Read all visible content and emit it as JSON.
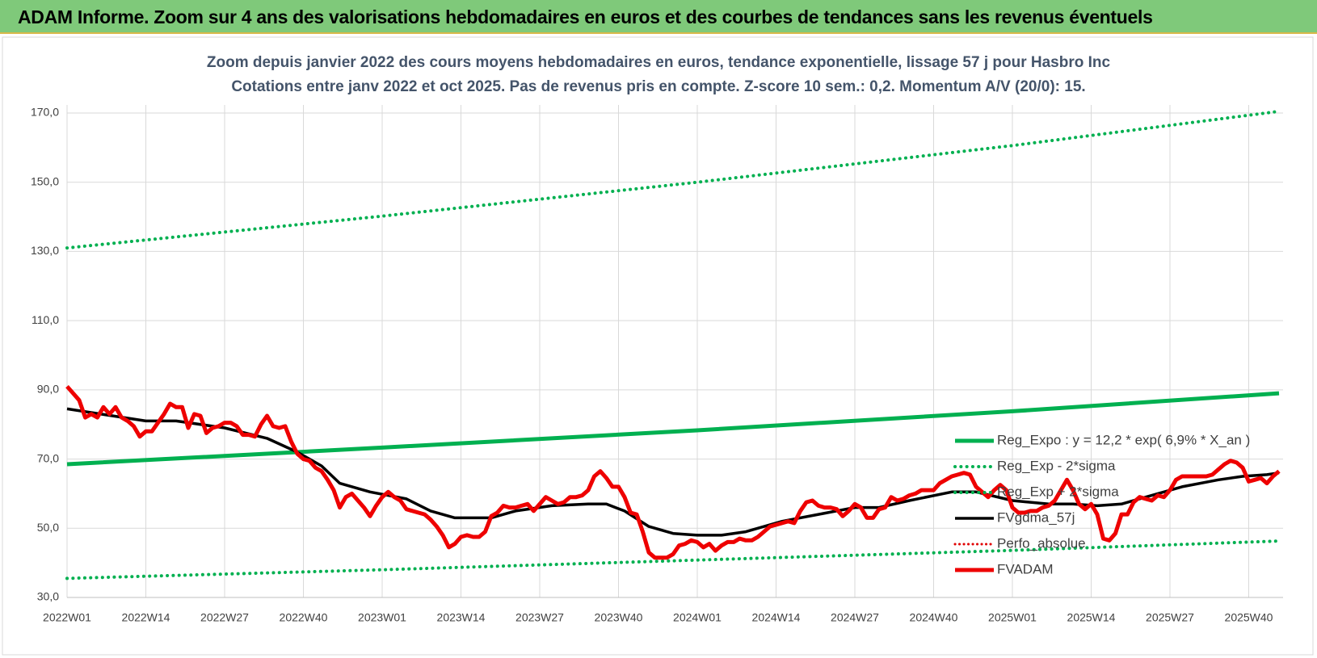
{
  "header": {
    "title": "ADAM Informe. Zoom sur 4 ans des valorisations hebdomadaires en euros et des courbes de tendances sans les revenus éventuels"
  },
  "chart_data": {
    "type": "line",
    "title": "Zoom depuis janvier 2022 des cours moyens hebdomadaires en euros, tendance exponentielle, lissage 57 j pour Hasbro Inc",
    "subtitle": "Cotations entre janv 2022 et oct 2025. Pas de revenus pris en compte. Z-score 10 sem.: 0,2. Momentum A/V (20/0): 15.",
    "categories": [
      "2022W01",
      null,
      null,
      null,
      null,
      null,
      null,
      null,
      null,
      null,
      null,
      null,
      null,
      "2022W14",
      null,
      null,
      null,
      null,
      null,
      null,
      null,
      null,
      null,
      null,
      null,
      null,
      "2022W27",
      null,
      null,
      null,
      null,
      null,
      null,
      null,
      null,
      null,
      null,
      null,
      null,
      "2022W40",
      null,
      null,
      null,
      null,
      null,
      null,
      null,
      null,
      null,
      null,
      null,
      null,
      "2023W01",
      null,
      null,
      null,
      null,
      null,
      null,
      null,
      null,
      null,
      null,
      null,
      null,
      "2023W14",
      null,
      null,
      null,
      null,
      null,
      null,
      null,
      null,
      null,
      null,
      null,
      null,
      "2023W27",
      null,
      null,
      null,
      null,
      null,
      null,
      null,
      null,
      null,
      null,
      null,
      null,
      "2023W40",
      null,
      null,
      null,
      null,
      null,
      null,
      null,
      null,
      null,
      null,
      null,
      null,
      "2024W01",
      null,
      null,
      null,
      null,
      null,
      null,
      null,
      null,
      null,
      null,
      null,
      null,
      "2024W14",
      null,
      null,
      null,
      null,
      null,
      null,
      null,
      null,
      null,
      null,
      null,
      null,
      "2024W27",
      null,
      null,
      null,
      null,
      null,
      null,
      null,
      null,
      null,
      null,
      null,
      null,
      "2024W40",
      null,
      null,
      null,
      null,
      null,
      null,
      null,
      null,
      null,
      null,
      null,
      null,
      "2025W01",
      null,
      null,
      null,
      null,
      null,
      null,
      null,
      null,
      null,
      null,
      null,
      null,
      "2025W14",
      null,
      null,
      null,
      null,
      null,
      null,
      null,
      null,
      null,
      null,
      null,
      null,
      "2025W27",
      null,
      null,
      null,
      null,
      null,
      null,
      null,
      null,
      null,
      null,
      null,
      null,
      "2025W40",
      null,
      null,
      null,
      null,
      null
    ],
    "ylim": [
      30,
      170
    ],
    "yticks": [
      {
        "value": 30,
        "label": "30,0"
      },
      {
        "value": 50,
        "label": "50,0"
      },
      {
        "value": 70,
        "label": "70,0"
      },
      {
        "value": 90,
        "label": "90,0"
      },
      {
        "value": 110,
        "label": "110,0"
      },
      {
        "value": 130,
        "label": "130,0"
      },
      {
        "value": 150,
        "label": "150,0"
      },
      {
        "value": 170,
        "label": "170,0"
      }
    ],
    "grid": true,
    "legend": "right",
    "series": [
      {
        "name": "Reg_Expo : y = 12,2 * exp( 6,9% * X_an )",
        "color": "#00b050",
        "style": "solid",
        "width": 5,
        "x": [
          0,
          52,
          104,
          156,
          200
        ],
        "values": [
          68.5,
          73.3,
          78.3,
          83.8,
          89
        ]
      },
      {
        "name": "Reg_Exp - 2*sigma",
        "color": "#00b050",
        "style": "dotted",
        "width": 4,
        "x": [
          0,
          52,
          104,
          156,
          200
        ],
        "values": [
          35.5,
          38,
          40.8,
          43.6,
          46.3
        ]
      },
      {
        "name": "Reg_Exp + 2*sigma",
        "color": "#00b050",
        "style": "dotted",
        "width": 4,
        "x": [
          0,
          52,
          104,
          156,
          200
        ],
        "values": [
          131,
          140.2,
          150,
          160.6,
          170.5
        ]
      },
      {
        "name": "FVgdma_57j",
        "color": "#000000",
        "style": "solid",
        "width": 3.5,
        "x": [
          0,
          13,
          18,
          26,
          33,
          38,
          42,
          45,
          50,
          56,
          60,
          64,
          70,
          74,
          80,
          86,
          89,
          92,
          96,
          100,
          104,
          108,
          112,
          118,
          124,
          130,
          134,
          139,
          146,
          150,
          156,
          162,
          166,
          170,
          174,
          178,
          184,
          190,
          194,
          198,
          200
        ],
        "values": [
          84.5,
          81,
          81,
          79,
          76,
          72,
          68,
          63,
          60.5,
          58.5,
          55,
          53,
          53,
          55,
          56.5,
          57,
          57,
          55,
          50.5,
          48.5,
          48,
          48,
          49,
          52,
          54,
          56,
          56,
          58,
          60.5,
          60.5,
          58,
          57,
          57,
          56.5,
          57,
          59,
          62,
          64,
          65,
          65.5,
          66
        ]
      },
      {
        "name": "Perfo_absolue",
        "color": "#e00000",
        "style": "dotted",
        "width": 3
      },
      {
        "name": "FVADAM",
        "color": "#ee0000",
        "style": "solid",
        "width": 5,
        "values": [
          91,
          89,
          87,
          82,
          83,
          82,
          85,
          83,
          85,
          82,
          81,
          79.5,
          76.5,
          78,
          78,
          80.5,
          83,
          86,
          85,
          85,
          79,
          83,
          82.5,
          77.5,
          79,
          79.5,
          80.5,
          80.5,
          79.5,
          77,
          77,
          76.5,
          80,
          82.5,
          79.5,
          79,
          79.5,
          75,
          71.5,
          70,
          69.5,
          67.5,
          66.5,
          64,
          61,
          56,
          59,
          60,
          58,
          56,
          53.5,
          56.5,
          59,
          60.5,
          59,
          58,
          55.5,
          55,
          54.5,
          54,
          52.5,
          50.5,
          48,
          44.5,
          45.5,
          47.5,
          48,
          47.5,
          47.5,
          49,
          53.5,
          54.5,
          56.5,
          56,
          56,
          56.5,
          57,
          55,
          57,
          59,
          58,
          57,
          57.5,
          59,
          59,
          59.5,
          61,
          65,
          66.5,
          64.5,
          62,
          62,
          59,
          54.5,
          54,
          49,
          43,
          41.5,
          41.5,
          41.5,
          42.5,
          45,
          45.5,
          46.5,
          46,
          44.5,
          45.5,
          43.5,
          45,
          46,
          46,
          47,
          46.5,
          46.5,
          47.5,
          49,
          50.5,
          51,
          51.5,
          52,
          51.5,
          55,
          57.5,
          58,
          56.5,
          56,
          56,
          55.5,
          53.5,
          55,
          57,
          56,
          53,
          53,
          55.5,
          56,
          59,
          58,
          58.5,
          59.5,
          60,
          61,
          61,
          61,
          63,
          64,
          65,
          65.5,
          66,
          65.5,
          62,
          60.5,
          59,
          61,
          62.5,
          61,
          56,
          54.5,
          54.5,
          55,
          55,
          56,
          56.5,
          58,
          61,
          64,
          61,
          57,
          55.5,
          57,
          54,
          47,
          46.5,
          48.5,
          54,
          54,
          57.5,
          59,
          58.5,
          58,
          59.5,
          59,
          61,
          64,
          65,
          65,
          65,
          65,
          65,
          65.5,
          67,
          68.5,
          69.5,
          69,
          67.5,
          63.5,
          64,
          64.5,
          63,
          65,
          66.5
        ]
      }
    ]
  }
}
